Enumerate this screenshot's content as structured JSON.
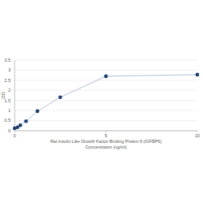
{
  "chart_data": {
    "type": "line",
    "title": "Rat Insulin Like Growth Factor Binding Protein 6 (IGFBP6)",
    "x_label": "Concentration (ng/ml)",
    "y_label": "OD",
    "x": [
      0,
      0.156,
      0.312,
      0.625,
      1.25,
      2.5,
      5,
      10
    ],
    "values": [
      0.12,
      0.17,
      0.27,
      0.47,
      0.97,
      1.66,
      2.7,
      2.78
    ],
    "color": "#1f3e6e",
    "marker": "circle",
    "xlim": [
      0,
      10
    ],
    "xticks": [
      0,
      5,
      10
    ],
    "ylim": [
      0,
      3.5
    ],
    "yticks": [
      0,
      0.5,
      1,
      1.5,
      2,
      2.5,
      3,
      3.5
    ],
    "grid": true
  }
}
